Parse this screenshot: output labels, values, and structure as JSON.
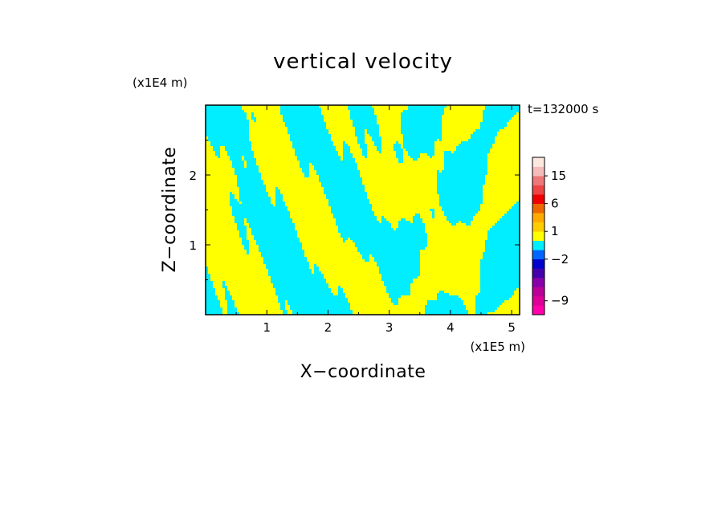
{
  "chart_data": {
    "type": "heatmap",
    "title": "vertical velocity",
    "xlabel": "X−coordinate",
    "ylabel": "Z−coordinate",
    "x_unit": "(x1E5 m)",
    "y_unit": "(x1E4 m)",
    "time_label": "t=132000 s",
    "x_ticks": [
      "1",
      "2",
      "3",
      "4",
      "5"
    ],
    "y_ticks": [
      "1",
      "2"
    ],
    "xlim": [
      0,
      5.13
    ],
    "ylim": [
      0,
      3.0
    ],
    "colorbar": {
      "tick_labels": [
        {
          "text": "15",
          "level": 15
        },
        {
          "text": "6",
          "level": 6
        },
        {
          "text": "1",
          "level": 1
        },
        {
          "text": "−2",
          "level": -2
        },
        {
          "text": "−9",
          "level": -9
        }
      ],
      "bands": [
        {
          "from": -12,
          "to": -10,
          "color": "#ff00aa"
        },
        {
          "from": -10,
          "to": -8,
          "color": "#dd0099"
        },
        {
          "from": -8,
          "to": -6,
          "color": "#bb0099"
        },
        {
          "from": -6,
          "to": -4,
          "color": "#8800aa"
        },
        {
          "from": -4,
          "to": -3,
          "color": "#4400aa"
        },
        {
          "from": -3,
          "to": -2,
          "color": "#0000cc"
        },
        {
          "from": -2,
          "to": -1,
          "color": "#0066ff"
        },
        {
          "from": -1,
          "to": 0,
          "color": "#00eeff"
        },
        {
          "from": 0,
          "to": 1,
          "color": "#ffff00"
        },
        {
          "from": 1,
          "to": 2,
          "color": "#ffcc00"
        },
        {
          "from": 2,
          "to": 3,
          "color": "#ffaa00"
        },
        {
          "from": 3,
          "to": 6,
          "color": "#ee6600"
        },
        {
          "from": 6,
          "to": 9,
          "color": "#ee0000"
        },
        {
          "from": 9,
          "to": 12,
          "color": "#ee4444"
        },
        {
          "from": 12,
          "to": 15,
          "color": "#ee7777"
        },
        {
          "from": 15,
          "to": 18,
          "color": "#f5bbbb"
        },
        {
          "from": 18,
          "to": 24,
          "color": "#fde8e0"
        }
      ]
    },
    "field_colors": {
      "positive": "#ffff00",
      "negative": "#00eeff"
    }
  }
}
